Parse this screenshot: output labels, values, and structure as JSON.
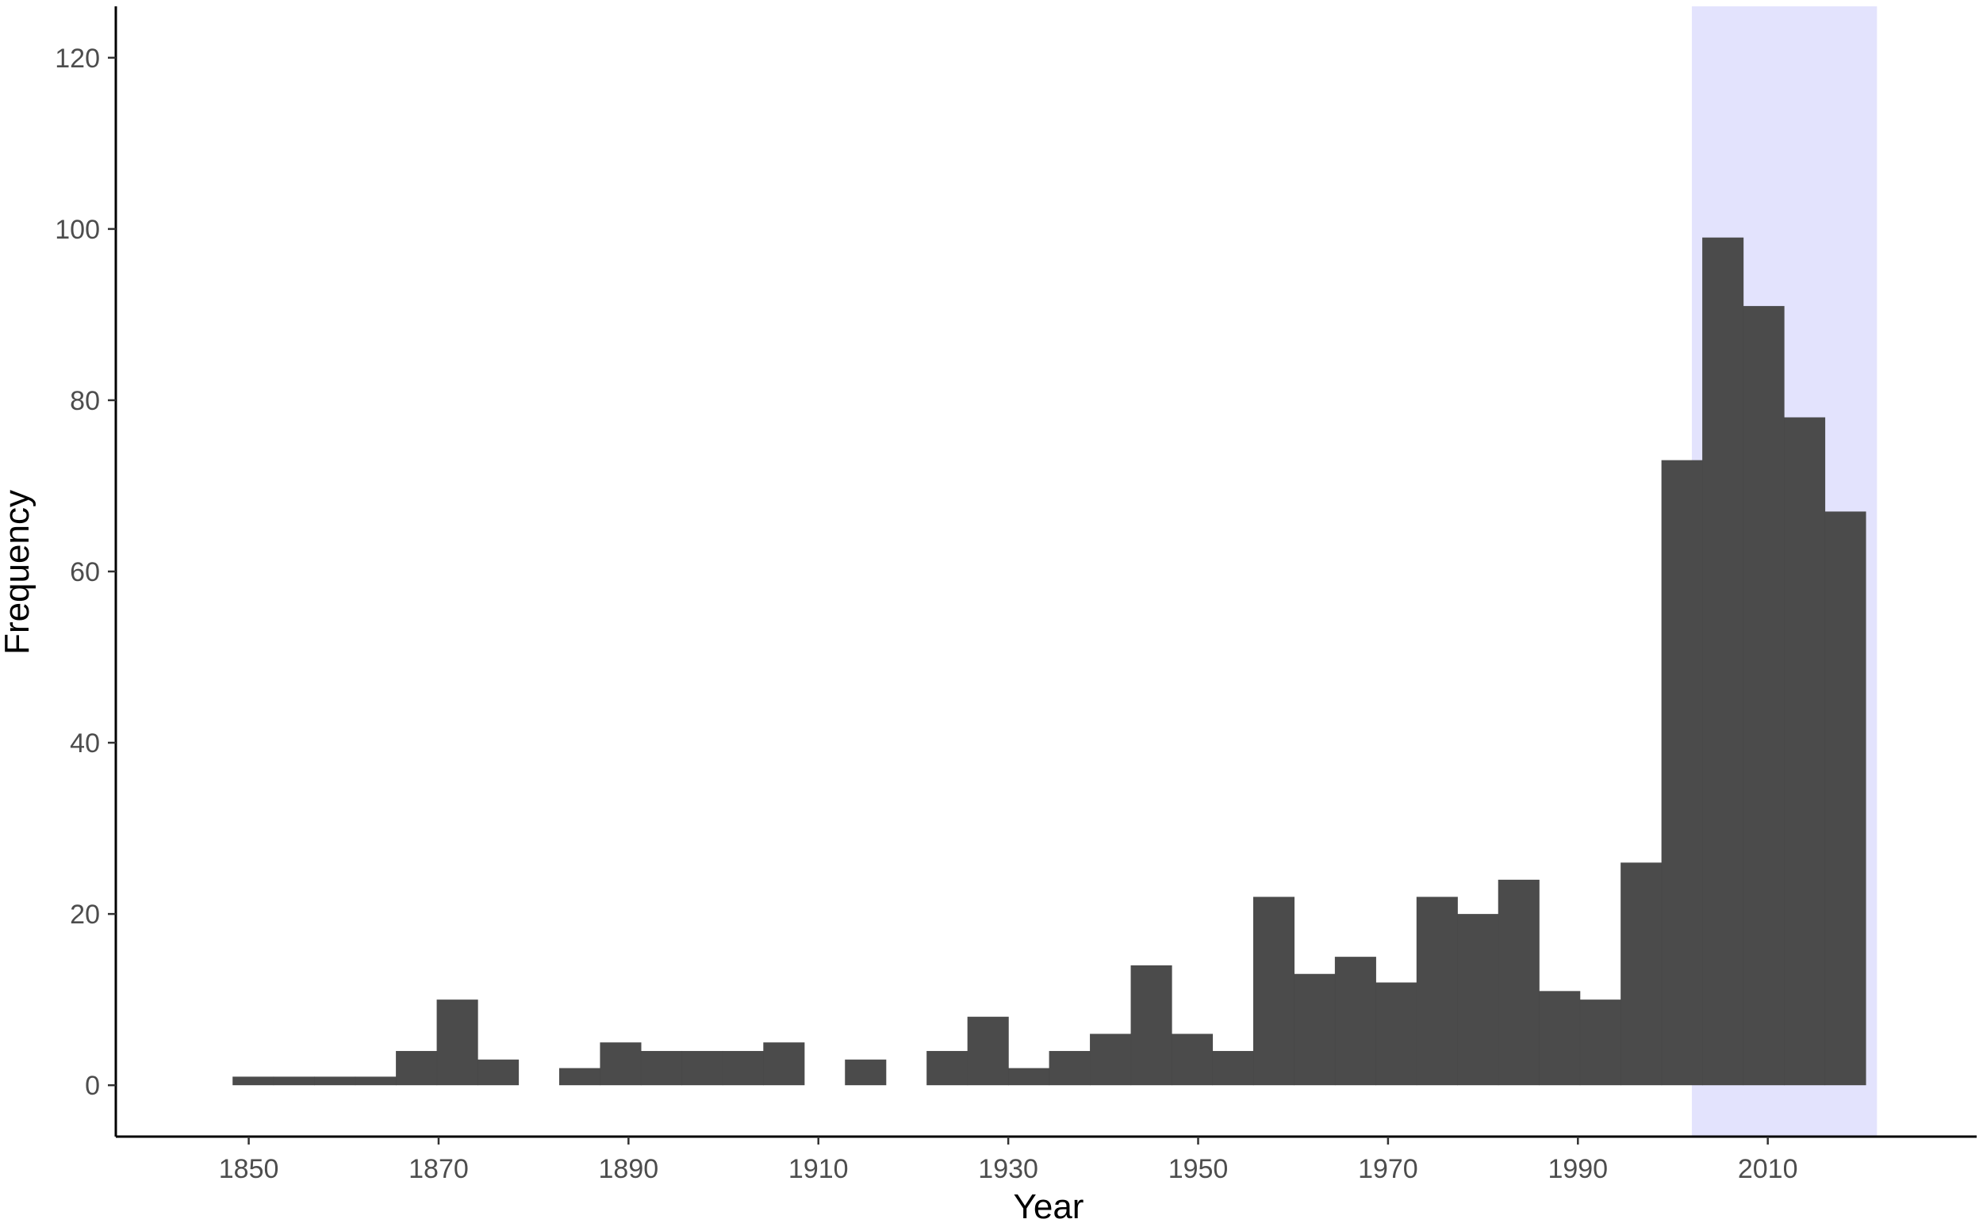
{
  "chart_data": {
    "type": "bar",
    "title": "",
    "xlabel": "Year",
    "ylabel": "Frequency",
    "xlim": [
      1836,
      2032
    ],
    "ylim": [
      -6,
      126
    ],
    "x_ticks": [
      1850,
      1870,
      1890,
      1910,
      1930,
      1950,
      1970,
      1990,
      2010
    ],
    "y_ticks": [
      0,
      20,
      40,
      60,
      80,
      100,
      120
    ],
    "bin_width": 4.3,
    "bins": [
      {
        "start": 1848.3,
        "value": 1
      },
      {
        "start": 1852.6,
        "value": 1
      },
      {
        "start": 1856.9,
        "value": 1
      },
      {
        "start": 1861.2,
        "value": 1
      },
      {
        "start": 1865.5,
        "value": 4
      },
      {
        "start": 1869.8,
        "value": 10
      },
      {
        "start": 1874.1,
        "value": 3
      },
      {
        "start": 1878.4,
        "value": 0
      },
      {
        "start": 1882.7,
        "value": 2
      },
      {
        "start": 1887.0,
        "value": 5
      },
      {
        "start": 1891.3,
        "value": 4
      },
      {
        "start": 1895.6,
        "value": 4
      },
      {
        "start": 1899.9,
        "value": 4
      },
      {
        "start": 1904.2,
        "value": 5
      },
      {
        "start": 1908.5,
        "value": 0
      },
      {
        "start": 1912.8,
        "value": 3
      },
      {
        "start": 1917.1,
        "value": 0
      },
      {
        "start": 1921.4,
        "value": 4
      },
      {
        "start": 1925.7,
        "value": 8
      },
      {
        "start": 1930.0,
        "value": 2
      },
      {
        "start": 1934.3,
        "value": 4
      },
      {
        "start": 1938.6,
        "value": 6
      },
      {
        "start": 1942.9,
        "value": 14
      },
      {
        "start": 1947.2,
        "value": 6
      },
      {
        "start": 1951.5,
        "value": 4
      },
      {
        "start": 1955.8,
        "value": 22
      },
      {
        "start": 1960.1,
        "value": 13
      },
      {
        "start": 1964.4,
        "value": 15
      },
      {
        "start": 1968.7,
        "value": 12
      },
      {
        "start": 1973.0,
        "value": 22
      },
      {
        "start": 1977.3,
        "value": 20
      },
      {
        "start": 1981.6,
        "value": 24
      },
      {
        "start": 1985.9,
        "value": 11
      },
      {
        "start": 1990.2,
        "value": 10
      },
      {
        "start": 1994.5,
        "value": 26
      },
      {
        "start": 1998.8,
        "value": 73
      },
      {
        "start": 2003.1,
        "value": 99
      },
      {
        "start": 2007.4,
        "value": 91
      },
      {
        "start": 2011.7,
        "value": 78
      },
      {
        "start": 2016.0,
        "value": 67
      }
    ],
    "highlight_band": {
      "x_start": 2002.0,
      "x_end": 2021.5
    },
    "grid": false,
    "legend": "none",
    "colors": {
      "bar": "#474747",
      "band": "#e3e3fd",
      "axis": "#000000"
    }
  }
}
